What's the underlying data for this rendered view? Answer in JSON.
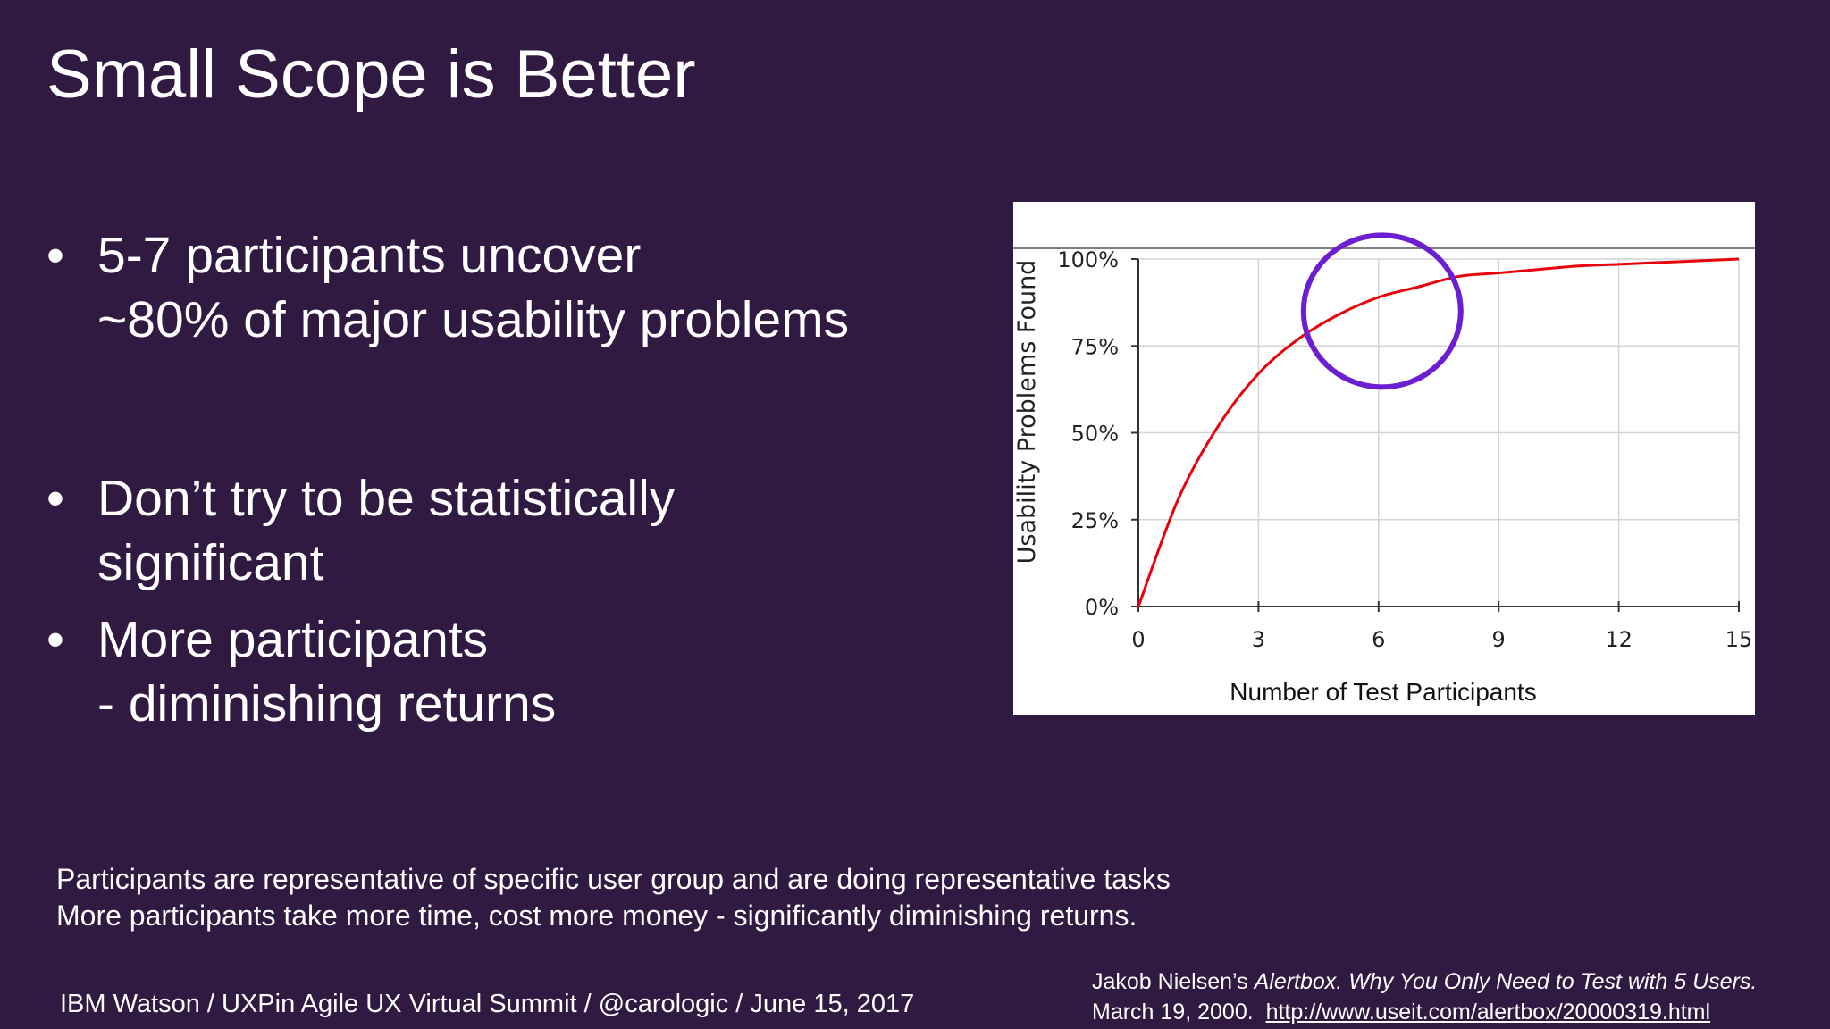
{
  "slide": {
    "title": "Small Scope is Better",
    "bullets": [
      {
        "lines": [
          "5-7 participants uncover",
          "~80% of major usability problems"
        ]
      },
      {
        "lines": [
          "Don’t try to be statistically",
          "significant"
        ]
      },
      {
        "lines": [
          "More participants",
          "- diminishing returns"
        ]
      }
    ],
    "bullet_glyph": "•",
    "notes": [
      "Participants are representative of specific user group and are doing representative tasks",
      "More participants take more time, cost more money - significantly diminishing returns."
    ],
    "footer": "IBM Watson  /  UXPin Agile UX Virtual Summit  /  @carologic  /  June 15, 2017",
    "citation": {
      "author": "Jakob Nielsen’s ",
      "work": "Alertbox. Why You Only Need to Test with 5 Users.",
      "date": "March 19, 2000.",
      "url": "http://www.useit.com/alertbox/20000319.html"
    }
  },
  "colors": {
    "background": "#311a41",
    "curve": "#e8000b",
    "highlight_circle": "#6c1fd1"
  },
  "chart_data": {
    "type": "line",
    "xlabel": "Number of Test Participants",
    "ylabel": "Usability Problems Found",
    "xlim": [
      0,
      15
    ],
    "ylim": [
      0,
      100
    ],
    "x_ticks": [
      "0",
      "3",
      "6",
      "9",
      "12",
      "15"
    ],
    "y_ticks": [
      "0%",
      "25%",
      "50%",
      "75%",
      "100%"
    ],
    "grid": true,
    "series": [
      {
        "x": [
          0,
          1,
          2,
          3,
          4,
          5,
          6,
          7,
          8,
          9,
          10,
          11,
          12,
          13,
          14,
          15
        ],
        "values": [
          0,
          31,
          52,
          67,
          77,
          84,
          89,
          92,
          95,
          96,
          97,
          98,
          98.5,
          99,
          99.5,
          100
        ]
      }
    ],
    "annotation": {
      "type": "circle",
      "center_x": 6,
      "center_y": 85
    }
  }
}
